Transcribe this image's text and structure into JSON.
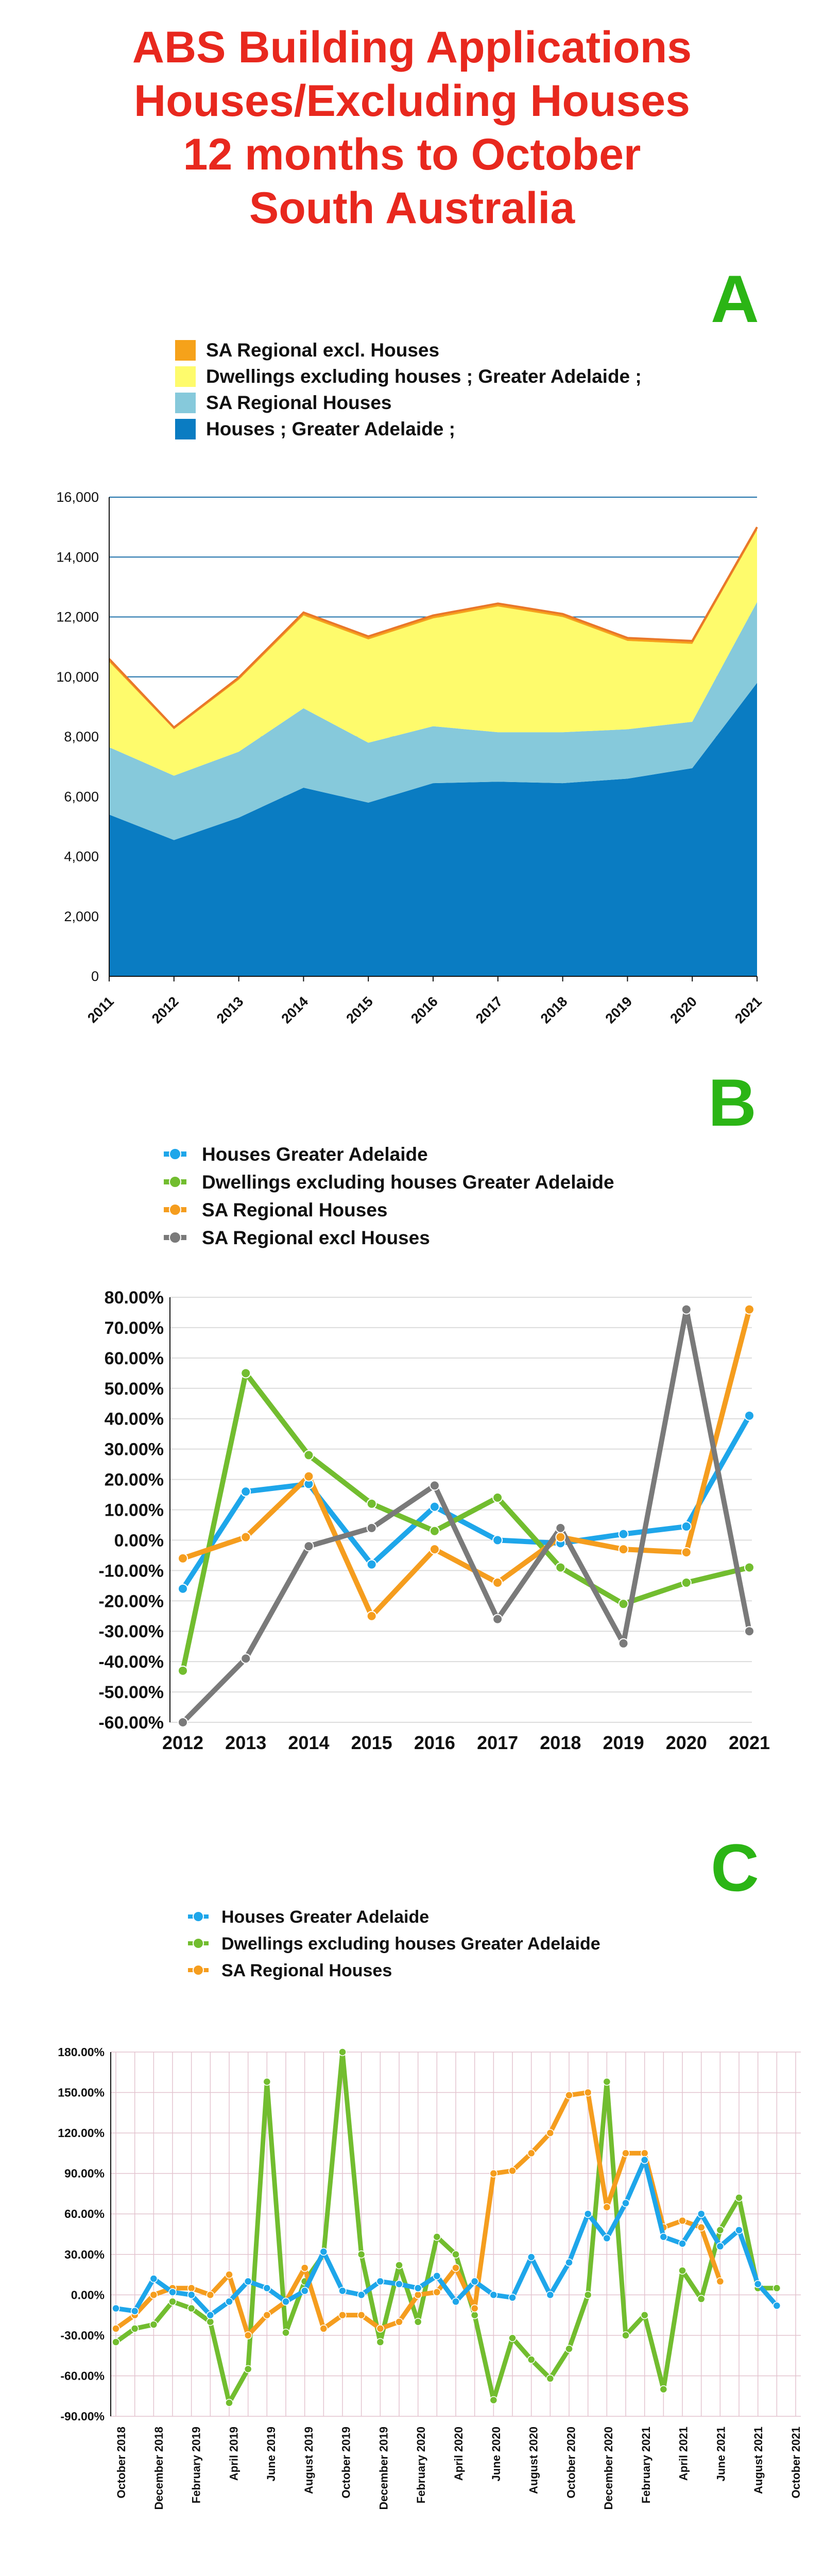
{
  "title": [
    "ABS Building Applications",
    "Houses/Excluding Houses",
    "12 months to October",
    "South Australia"
  ],
  "colors": {
    "title": "#e8281e",
    "panel_letter": "#2bb515",
    "houses_ga": "#0a7cc2",
    "sa_regional_houses_area": "#86c9db",
    "dwellings_excl_area": "#fefb6c",
    "sa_regional_excl_area": "#f6a21a",
    "blue_line": "#1ea6ea",
    "green_line": "#72bd2f",
    "orange_line": "#f59d1e",
    "gray_line": "#7a7a7a"
  },
  "chart_data": [
    {
      "id": "A",
      "type": "area",
      "stacked": true,
      "panel_label": "A",
      "categories": [
        "2011",
        "2012",
        "2013",
        "2014",
        "2015",
        "2016",
        "2017",
        "2018",
        "2019",
        "2020",
        "2021"
      ],
      "series": [
        {
          "name": "Houses ;  Greater Adelaide ;",
          "values": [
            5400,
            4550,
            5300,
            6300,
            5800,
            6450,
            6500,
            6450,
            6600,
            6950,
            9800
          ]
        },
        {
          "name": "SA Regional Houses",
          "values": [
            2250,
            2150,
            2200,
            2650,
            2000,
            1900,
            1650,
            1700,
            1650,
            1550,
            2700
          ]
        },
        {
          "name": "Dwellings excluding houses ;  Greater Adelaide ;",
          "values": [
            2850,
            1550,
            2400,
            3100,
            3450,
            3600,
            4200,
            3850,
            2950,
            2600,
            2400
          ]
        },
        {
          "name": "SA Regional excl. Houses",
          "values": [
            100,
            60,
            80,
            100,
            100,
            100,
            100,
            100,
            100,
            100,
            100
          ]
        }
      ],
      "legend_order": [
        "SA Regional excl. Houses",
        "Dwellings excluding houses ;  Greater Adelaide ;",
        "SA Regional Houses",
        "Houses ;  Greater Adelaide ;"
      ],
      "y_ticks": [
        "0",
        "2,000",
        "4,000",
        "6,000",
        "8,000",
        "10,000",
        "12,000",
        "14,000",
        "16,000"
      ],
      "ylim": [
        0,
        16000
      ],
      "grid": true,
      "legend_position": "top-left",
      "title": "",
      "xlabel": "",
      "ylabel": ""
    },
    {
      "id": "B",
      "type": "line",
      "panel_label": "B",
      "categories": [
        "2012",
        "2013",
        "2014",
        "2015",
        "2016",
        "2017",
        "2018",
        "2019",
        "2020",
        "2021"
      ],
      "series": [
        {
          "name": "Houses Greater Adelaide",
          "values": [
            -16,
            16,
            18.5,
            -8,
            11,
            0,
            -1,
            2,
            4.5,
            41
          ]
        },
        {
          "name": "Dwellings excluding houses Greater Adelaide",
          "values": [
            -43,
            55,
            28,
            12,
            3,
            14,
            -9,
            -21,
            -14,
            -9
          ]
        },
        {
          "name": "SA Regional Houses",
          "values": [
            -6,
            1,
            21,
            -25,
            -3,
            -14,
            1,
            -3,
            -4,
            76
          ]
        },
        {
          "name": "SA Regional excl Houses",
          "values": [
            -60,
            -39,
            -2,
            4,
            18,
            -26,
            4,
            -34,
            76,
            -30
          ]
        }
      ],
      "y_ticks": [
        "80.00%",
        "70.00%",
        "60.00%",
        "50.00%",
        "40.00%",
        "30.00%",
        "20.00%",
        "10.00%",
        "0.00%",
        "-10.00%",
        "-20.00%",
        "-30.00%",
        "-40.00%",
        "-50.00%",
        "-60.00%"
      ],
      "ylim": [
        -60,
        80
      ],
      "grid": true,
      "legend_position": "top-left",
      "title": "",
      "xlabel": "",
      "ylabel": ""
    },
    {
      "id": "C",
      "type": "line",
      "panel_label": "C",
      "x_count": 37,
      "x_tick_labels": [
        "October 2018",
        "December 2018",
        "February 2019",
        "April 2019",
        "June 2019",
        "August 2019",
        "October 2019",
        "December 2019",
        "February 2020",
        "April 2020",
        "June 2020",
        "August 2020",
        "October 2020",
        "December 2020",
        "February 2021",
        "April 2021",
        "June 2021",
        "August 2021",
        "October 2021"
      ],
      "series": [
        {
          "name": "Houses Greater Adelaide",
          "values": [
            -10,
            -12,
            12,
            2,
            0,
            -15,
            -5,
            10,
            5,
            -5,
            3,
            32,
            3,
            0,
            10,
            8,
            5,
            14,
            -5,
            10,
            0,
            -2,
            28,
            0,
            24,
            60,
            42,
            68,
            100,
            43,
            38,
            60,
            36,
            48,
            8,
            -8
          ]
        },
        {
          "name": "Dwellings excluding houses Greater Adelaide",
          "values": [
            -35,
            -25,
            -22,
            -5,
            -10,
            -20,
            -80,
            -55,
            158,
            -28,
            10,
            30,
            180,
            30,
            -35,
            22,
            -20,
            43,
            30,
            -15,
            -78,
            -32,
            -48,
            -62,
            -40,
            0,
            158,
            -30,
            -15,
            -70,
            18,
            -3,
            48,
            72,
            5,
            5
          ]
        },
        {
          "name": "SA Regional Houses",
          "values": [
            -25,
            -15,
            0,
            5,
            5,
            0,
            15,
            -30,
            -15,
            -5,
            20,
            -25,
            -15,
            -15,
            -25,
            -20,
            0,
            2,
            20,
            -10,
            90,
            92,
            105,
            120,
            148,
            150,
            65,
            105,
            105,
            50,
            55,
            50,
            10
          ]
        }
      ],
      "series_start_index": [
        0,
        0,
        0
      ],
      "y_ticks": [
        "180.00%",
        "150.00%",
        "120.00%",
        "90.00%",
        "60.00%",
        "30.00%",
        "0.00%",
        "-30.00%",
        "-60.00%",
        "-90.00%"
      ],
      "ylim": [
        -90,
        180
      ],
      "grid": true,
      "legend_position": "top-center",
      "title": "",
      "xlabel": "",
      "ylabel": ""
    }
  ]
}
